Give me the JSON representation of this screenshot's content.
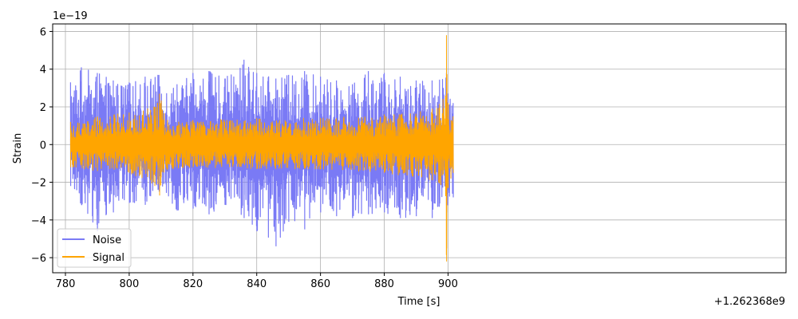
{
  "chart_data": {
    "type": "line",
    "xlabel": "Time [s]",
    "ylabel": "Strain",
    "x_offset_label": "+1.262368e9",
    "y_exponent_label": "1e−19",
    "xlim": [
      776,
      1006
    ],
    "ylim": [
      -6.8,
      6.4
    ],
    "x_ticks": [
      780,
      800,
      820,
      840,
      860,
      880,
      900
    ],
    "x_tick_labels": [
      "780",
      "800",
      "820",
      "840",
      "860",
      "880",
      "900"
    ],
    "y_ticks": [
      -6,
      -4,
      -2,
      0,
      2,
      4,
      6
    ],
    "y_tick_labels": [
      "−6",
      "−4",
      "−2",
      "0",
      "2",
      "4",
      "6"
    ],
    "x_range": [
      781.6,
      901.6
    ],
    "grid": true,
    "legend_position": "lower-left",
    "series": [
      {
        "name": "Noise",
        "color": "#7a7af5",
        "envelope": [
          {
            "x": 781.6,
            "lo": -2.2,
            "hi": 3.3
          },
          {
            "x": 785,
            "lo": -3.2,
            "hi": 4.1
          },
          {
            "x": 790,
            "lo": -4.6,
            "hi": 3.8
          },
          {
            "x": 795,
            "lo": -3.6,
            "hi": 3.4
          },
          {
            "x": 800,
            "lo": -3.1,
            "hi": 3.3
          },
          {
            "x": 805,
            "lo": -3.2,
            "hi": 3.6
          },
          {
            "x": 809,
            "lo": -2.4,
            "hi": 3.7
          },
          {
            "x": 815,
            "lo": -3.5,
            "hi": 3.2
          },
          {
            "x": 820,
            "lo": -3.4,
            "hi": 3.8
          },
          {
            "x": 825,
            "lo": -3.7,
            "hi": 3.9
          },
          {
            "x": 830,
            "lo": -3.2,
            "hi": 3.5
          },
          {
            "x": 836,
            "lo": -3.9,
            "hi": 4.5
          },
          {
            "x": 840,
            "lo": -4.6,
            "hi": 3.8
          },
          {
            "x": 846,
            "lo": -5.4,
            "hi": 3.5
          },
          {
            "x": 850,
            "lo": -4.1,
            "hi": 3.7
          },
          {
            "x": 855,
            "lo": -4.5,
            "hi": 3.9
          },
          {
            "x": 860,
            "lo": -3.6,
            "hi": 3.6
          },
          {
            "x": 865,
            "lo": -3.8,
            "hi": 3.4
          },
          {
            "x": 870,
            "lo": -3.9,
            "hi": 3.2
          },
          {
            "x": 875,
            "lo": -3.7,
            "hi": 3.9
          },
          {
            "x": 880,
            "lo": -3.6,
            "hi": 3.8
          },
          {
            "x": 885,
            "lo": -3.9,
            "hi": 3.6
          },
          {
            "x": 890,
            "lo": -3.8,
            "hi": 3.4
          },
          {
            "x": 895,
            "lo": -3.9,
            "hi": 3.4
          },
          {
            "x": 899.5,
            "lo": -3.6,
            "hi": 3.8
          },
          {
            "x": 901.6,
            "lo": -2.8,
            "hi": 2.2
          }
        ]
      },
      {
        "name": "Signal",
        "color": "#ffa500",
        "envelope": [
          {
            "x": 781.6,
            "lo": -1.2,
            "hi": 1.2
          },
          {
            "x": 790,
            "lo": -1.4,
            "hi": 1.5
          },
          {
            "x": 800,
            "lo": -1.5,
            "hi": 1.7
          },
          {
            "x": 808,
            "lo": -2.2,
            "hi": 2.0
          },
          {
            "x": 809.5,
            "lo": -2.7,
            "hi": 2.7
          },
          {
            "x": 812,
            "lo": -1.3,
            "hi": 1.3
          },
          {
            "x": 820,
            "lo": -1.2,
            "hi": 1.3
          },
          {
            "x": 840,
            "lo": -1.3,
            "hi": 1.4
          },
          {
            "x": 860,
            "lo": -1.3,
            "hi": 1.4
          },
          {
            "x": 880,
            "lo": -1.5,
            "hi": 1.6
          },
          {
            "x": 895,
            "lo": -1.9,
            "hi": 1.9
          },
          {
            "x": 899.2,
            "lo": -2.6,
            "hi": 2.6
          },
          {
            "x": 899.5,
            "lo": -6.2,
            "hi": 5.8
          },
          {
            "x": 900,
            "lo": -2.3,
            "hi": 2.2
          },
          {
            "x": 901.6,
            "lo": -1.5,
            "hi": 1.5
          }
        ]
      }
    ]
  }
}
